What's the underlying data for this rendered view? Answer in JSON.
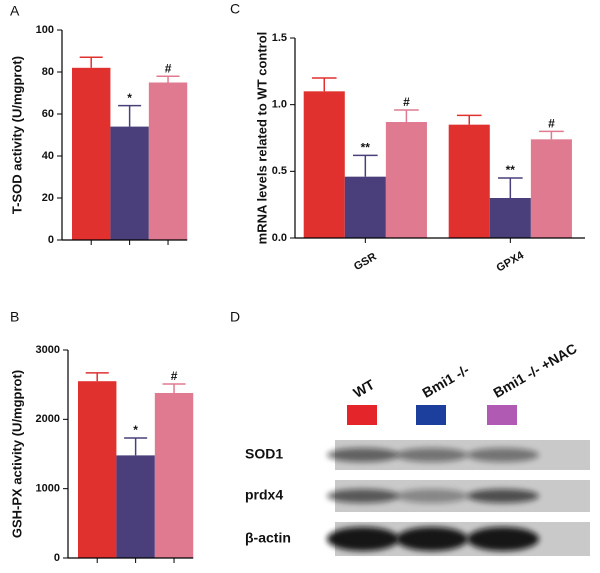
{
  "chart_data": [
    {
      "type": "bar",
      "panel": "A",
      "ylabel": "T-SOD activity (U/mgprot)",
      "categories": [
        null,
        null,
        null
      ],
      "values": [
        82,
        54,
        75
      ],
      "errors": [
        5,
        10,
        3
      ],
      "colors": [
        "#e0312f",
        "#4a3f7a",
        "#e07a90"
      ],
      "annotations": [
        null,
        "*",
        "#"
      ],
      "ylim": [
        0,
        100
      ],
      "yticks": [
        0,
        20,
        40,
        60,
        80,
        100
      ]
    },
    {
      "type": "bar",
      "panel": "B",
      "ylabel": "GSH-PX activity (U/mgprot)",
      "categories": [
        null,
        null,
        null
      ],
      "values": [
        2550,
        1480,
        2380
      ],
      "errors": [
        120,
        250,
        130
      ],
      "colors": [
        "#e0312f",
        "#4a3f7a",
        "#e07a90"
      ],
      "annotations": [
        null,
        "*",
        "#"
      ],
      "ylim": [
        0,
        3000
      ],
      "yticks": [
        0,
        1000,
        2000,
        3000
      ]
    },
    {
      "type": "bar",
      "panel": "C",
      "ylabel": "mRNA levels related to WT control",
      "categories": [
        "GSR",
        "GPX4"
      ],
      "series": [
        {
          "color": "#e0312f",
          "values": [
            1.1,
            0.85
          ],
          "errors": [
            0.1,
            0.07
          ],
          "annotations": [
            null,
            null
          ]
        },
        {
          "color": "#4a3f7a",
          "values": [
            0.46,
            0.3
          ],
          "errors": [
            0.16,
            0.15
          ],
          "annotations": [
            "**",
            "**"
          ]
        },
        {
          "color": "#e07a90",
          "values": [
            0.87,
            0.74
          ],
          "errors": [
            0.09,
            0.06
          ],
          "annotations": [
            "#",
            "#"
          ]
        }
      ],
      "ylim": [
        0,
        1.5
      ],
      "yticks": [
        {
          "value": 0,
          "label": "0.0"
        },
        0.5,
        {
          "value": 1,
          "label": "1.0"
        },
        1.5
      ]
    }
  ],
  "blot": {
    "panel": "D",
    "groups": [
      {
        "label": "WT",
        "color": "#e4262a"
      },
      {
        "label": "Bmi1 -/-",
        "color": "#1c3f9e"
      },
      {
        "label": "Bmi1 -/- +NAC",
        "color": "#b05ab4"
      }
    ],
    "rows": [
      "SOD1",
      "prdx4",
      "β-actin"
    ]
  }
}
